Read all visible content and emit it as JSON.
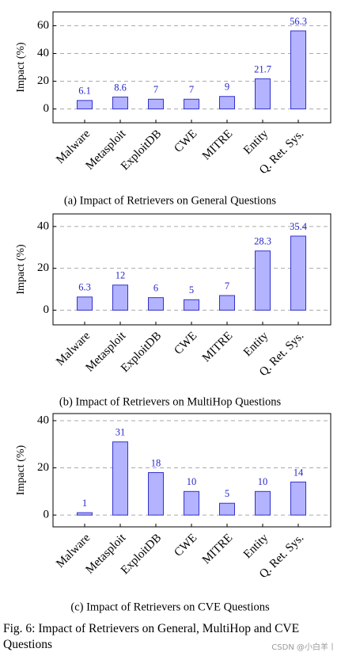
{
  "chart_data": [
    {
      "type": "bar",
      "caption": "(a) Impact of Retrievers on General Questions",
      "ylabel": "Impact (%)",
      "categories": [
        "Malware",
        "Metasploit",
        "ExploitDB",
        "CWE",
        "MITRE",
        "Entity",
        "Q. Ret. Sys."
      ],
      "values": [
        6.1,
        8.6,
        7,
        7,
        9,
        21.7,
        56.3
      ],
      "color": "#b3b3ff",
      "edge_color": "#3333cc",
      "label_color": "#2626c8",
      "ylim": [
        -10,
        70
      ],
      "yticks": [
        0,
        20,
        40,
        60
      ],
      "grid": true
    },
    {
      "type": "bar",
      "caption": "(b) Impact of Retrievers on MultiHop Questions",
      "ylabel": "Impact (%)",
      "categories": [
        "Malware",
        "Metasploit",
        "ExploitDB",
        "CWE",
        "MITRE",
        "Entity",
        "Q. Ret. Sys."
      ],
      "values": [
        6.3,
        12,
        6,
        5,
        7,
        28.3,
        35.4
      ],
      "color": "#b3b3ff",
      "edge_color": "#3333cc",
      "label_color": "#2626c8",
      "ylim": [
        -7,
        46
      ],
      "yticks": [
        0,
        20,
        40
      ],
      "grid": true
    },
    {
      "type": "bar",
      "caption": "(c) Impact of Retrievers on CVE Questions",
      "ylabel": "Impact (%)",
      "categories": [
        "Malware",
        "Metasploit",
        "ExploitDB",
        "CWE",
        "MITRE",
        "Entity",
        "Q. Ret. Sys."
      ],
      "values": [
        1,
        31,
        18,
        10,
        5,
        10,
        14
      ],
      "color": "#b3b3ff",
      "edge_color": "#3333cc",
      "label_color": "#2626c8",
      "ylim": [
        -5,
        43
      ],
      "yticks": [
        0,
        20,
        40
      ],
      "grid": true
    }
  ],
  "figure_caption": "Fig. 6: Impact of Retrievers on General, MultiHop and CVE Questions",
  "watermark": "CSDN @小白羊丨"
}
